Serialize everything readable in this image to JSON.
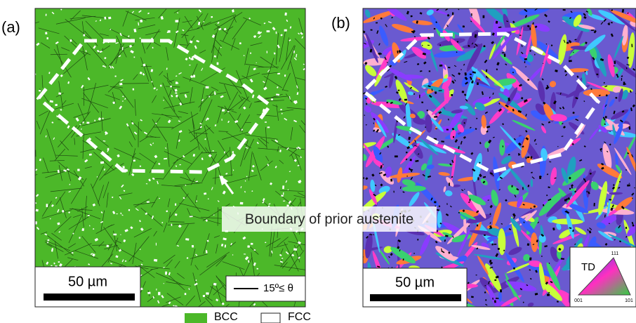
{
  "panels": [
    {
      "label": "(a)",
      "scale_bar": "50 µm",
      "legend": "15º≤ θ"
    },
    {
      "label": "(b)",
      "scale_bar": "50 µm",
      "ipf": {
        "direction": "TD",
        "corners": [
          "111",
          "001",
          "101"
        ]
      }
    }
  ],
  "annotation": "Boundary of prior austenite",
  "phase_legend": [
    "BCC",
    "FCC"
  ]
}
